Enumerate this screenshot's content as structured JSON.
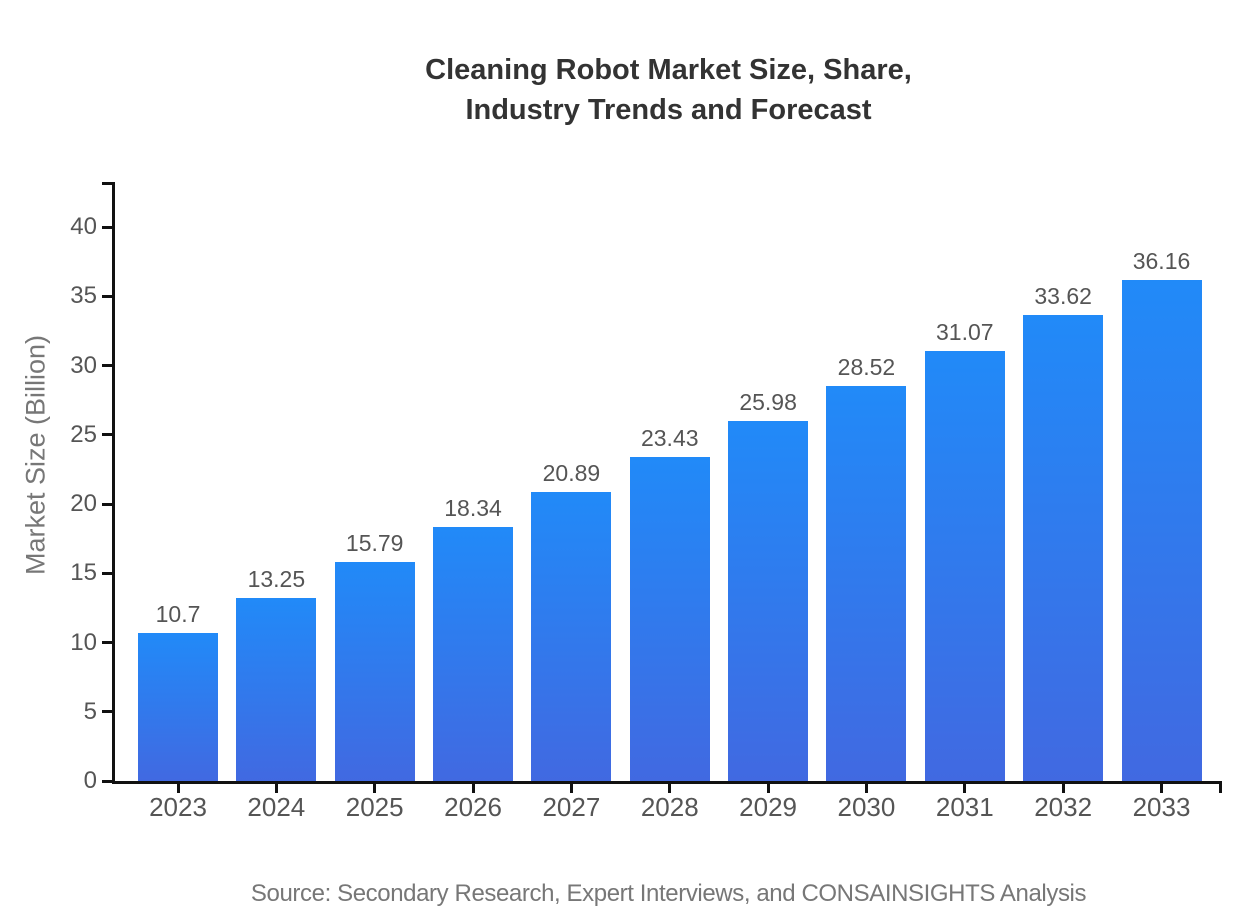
{
  "title": {
    "line1": "Cleaning Robot Market Size, Share,",
    "line2": "Industry Trends and Forecast"
  },
  "source": "Source: Secondary Research, Expert Interviews, and CONSAINSIGHTS Analysis",
  "chart_data": {
    "type": "bar",
    "title": "Cleaning Robot Market Size, Share, Industry Trends and Forecast",
    "categories": [
      "2023",
      "2024",
      "2025",
      "2026",
      "2027",
      "2028",
      "2029",
      "2030",
      "2031",
      "2032",
      "2033"
    ],
    "values": [
      10.7,
      13.25,
      15.79,
      18.34,
      20.89,
      23.43,
      25.98,
      28.52,
      31.07,
      33.62,
      36.16
    ],
    "value_labels": [
      "10.7",
      "13.25",
      "15.79",
      "18.34",
      "20.89",
      "23.43",
      "25.98",
      "28.52",
      "31.07",
      "33.62",
      "36.16"
    ],
    "xlabel": "",
    "ylabel": "Market Size (Billion)",
    "ylim": [
      0,
      43.25
    ],
    "yticks": [
      0,
      5,
      10,
      15,
      20,
      25,
      30,
      35,
      40
    ],
    "ytick_labels": [
      "0",
      "5",
      "10",
      "15",
      "20",
      "25",
      "30",
      "35",
      "40"
    ],
    "grid": false,
    "legend": null
  },
  "colors": {
    "bar_gradient_top": "#218AF8",
    "bar_gradient_bottom": "#4169E1",
    "axis": "#111111",
    "title_text": "#333333",
    "tick_text": "#555555",
    "muted_text": "#777777",
    "background": "#ffffff"
  }
}
